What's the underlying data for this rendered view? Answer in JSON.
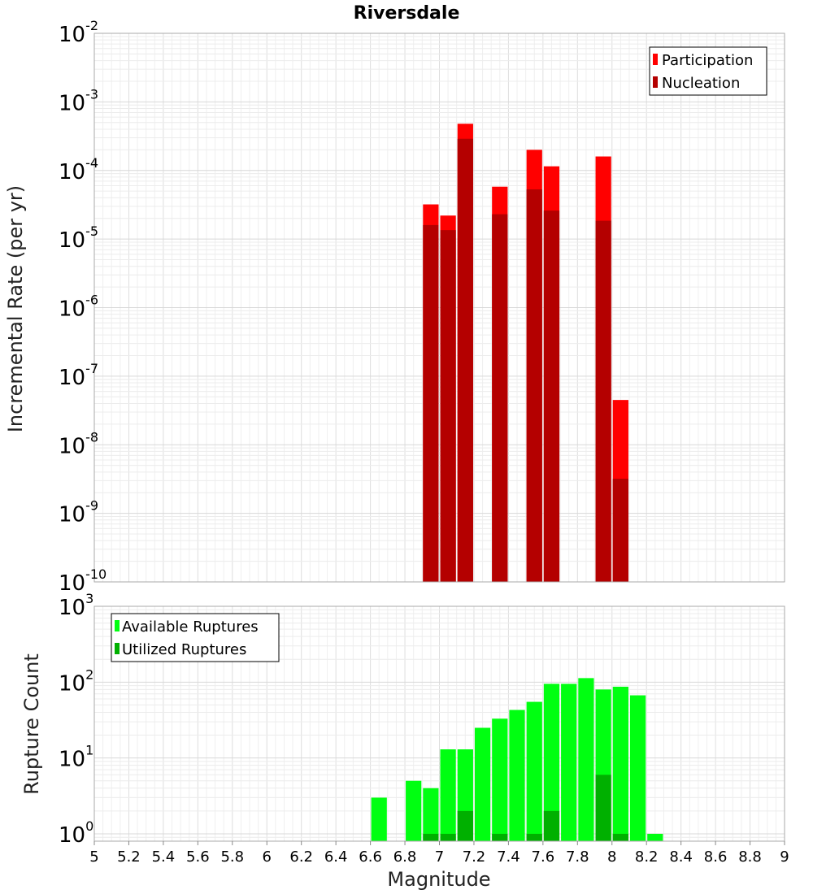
{
  "chart_data": [
    {
      "type": "bar",
      "title": "Riversdale",
      "ylabel": "Incremental Rate (per yr)",
      "xlabel": "",
      "yscale": "log",
      "ylim": [
        1e-10,
        0.01
      ],
      "xlim": [
        5,
        9
      ],
      "bar_width": 0.1,
      "y_ticks": [
        {
          "base": "10",
          "exp": "-10",
          "value": 1e-10
        },
        {
          "base": "10",
          "exp": "-9",
          "value": 1e-09
        },
        {
          "base": "10",
          "exp": "-8",
          "value": 1e-08
        },
        {
          "base": "10",
          "exp": "-7",
          "value": 1e-07
        },
        {
          "base": "10",
          "exp": "-6",
          "value": 1e-06
        },
        {
          "base": "10",
          "exp": "-5",
          "value": 1e-05
        },
        {
          "base": "10",
          "exp": "-4",
          "value": 0.0001
        },
        {
          "base": "10",
          "exp": "-3",
          "value": 0.001
        },
        {
          "base": "10",
          "exp": "-2",
          "value": 0.01
        }
      ],
      "legend_position": "top-right",
      "legend": [
        "Participation",
        "Nucleation"
      ],
      "series": [
        {
          "name": "Participation",
          "color": "#ff0000",
          "x": [
            6.95,
            7.05,
            7.15,
            7.35,
            7.55,
            7.65,
            7.95,
            8.05
          ],
          "values": [
            3.2e-05,
            2.2e-05,
            0.00048,
            5.8e-05,
            0.0002,
            0.000115,
            0.00016,
            4.5e-08
          ]
        },
        {
          "name": "Nucleation",
          "color": "#b40000",
          "x": [
            6.95,
            7.05,
            7.15,
            7.35,
            7.55,
            7.65,
            7.95,
            8.05
          ],
          "values": [
            1.6e-05,
            1.35e-05,
            0.00029,
            2.3e-05,
            5.3e-05,
            2.6e-05,
            1.85e-05,
            3.2e-09
          ]
        }
      ],
      "grid": true
    },
    {
      "type": "bar",
      "title": "",
      "ylabel": "Rupture Count",
      "xlabel": "Magnitude",
      "yscale": "log",
      "ylim": [
        0.8,
        1000
      ],
      "xlim": [
        5,
        9
      ],
      "bar_width": 0.1,
      "y_ticks": [
        {
          "base": "10",
          "exp": "0",
          "value": 1
        },
        {
          "base": "10",
          "exp": "1",
          "value": 10
        },
        {
          "base": "10",
          "exp": "2",
          "value": 100
        },
        {
          "base": "10",
          "exp": "3",
          "value": 1000
        }
      ],
      "x_ticks": [
        "5",
        "5.2",
        "5.4",
        "5.6",
        "5.8",
        "6",
        "6.2",
        "6.4",
        "6.6",
        "6.8",
        "7",
        "7.2",
        "7.4",
        "7.6",
        "7.8",
        "8",
        "8.2",
        "8.4",
        "8.6",
        "8.8",
        "9"
      ],
      "legend_position": "top-left",
      "legend": [
        "Available Ruptures",
        "Utilized Ruptures"
      ],
      "series": [
        {
          "name": "Available Ruptures",
          "color": "#00ff11",
          "x": [
            6.65,
            6.85,
            6.95,
            7.05,
            7.15,
            7.25,
            7.35,
            7.45,
            7.55,
            7.65,
            7.75,
            7.85,
            7.95,
            8.05,
            8.15,
            8.25
          ],
          "values": [
            3,
            5,
            4,
            13,
            13,
            25,
            33,
            43,
            55,
            95,
            95,
            113,
            80,
            87,
            67,
            1
          ]
        },
        {
          "name": "Utilized Ruptures",
          "color": "#00b000",
          "x": [
            6.95,
            7.05,
            7.15,
            7.35,
            7.55,
            7.65,
            7.95,
            8.05
          ],
          "values": [
            1,
            1,
            2,
            1,
            1,
            2,
            6,
            1
          ]
        }
      ],
      "grid": true
    }
  ]
}
